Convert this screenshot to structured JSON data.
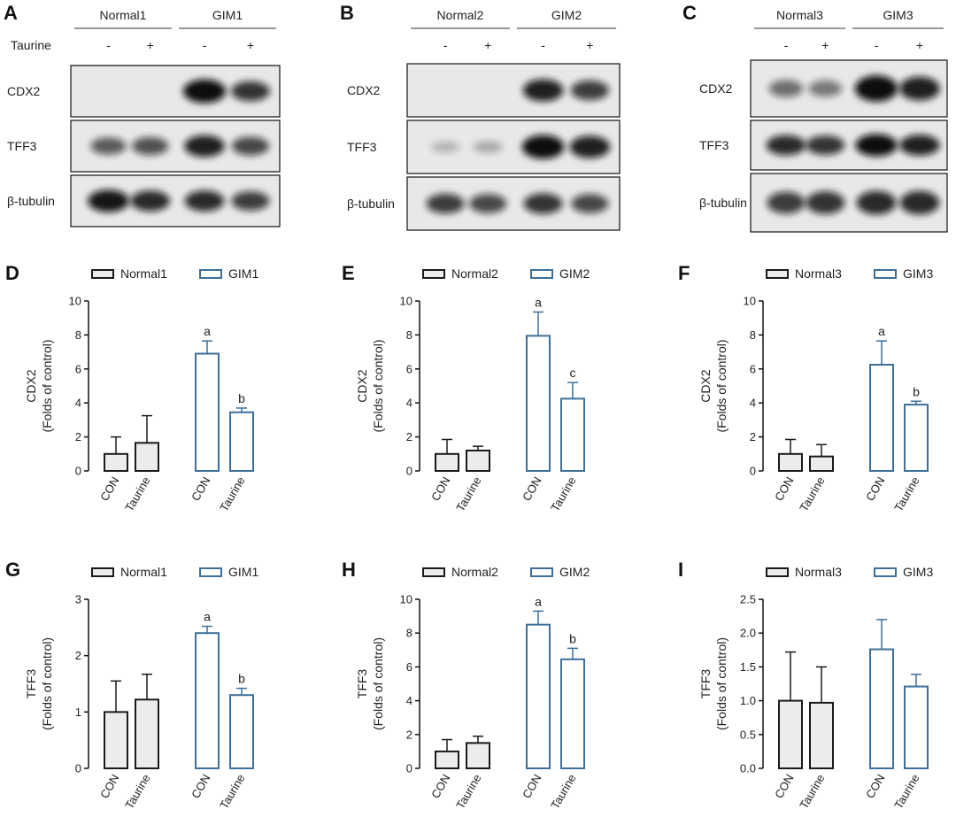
{
  "blots": [
    {
      "panel": "A",
      "groups": [
        "Normal1",
        "GIM1"
      ],
      "treatment_label": "Taurine",
      "signs": [
        "-",
        "+",
        "-",
        "+"
      ],
      "proteins": [
        "CDX2",
        "TFF3",
        "β-tubulin"
      ],
      "intensities": [
        [
          0,
          0,
          1.0,
          0.75
        ],
        [
          0.55,
          0.6,
          0.85,
          0.65
        ],
        [
          0.9,
          0.8,
          0.8,
          0.7
        ]
      ]
    },
    {
      "panel": "B",
      "groups": [
        "Normal2",
        "GIM2"
      ],
      "signs": [
        "-",
        "+",
        "-",
        "+"
      ],
      "proteins": [
        "CDX2",
        "TFF3",
        "β-tubulin"
      ],
      "intensities": [
        [
          0,
          0,
          0.85,
          0.7
        ],
        [
          0.1,
          0.15,
          0.95,
          0.85
        ],
        [
          0.7,
          0.65,
          0.75,
          0.65
        ]
      ]
    },
    {
      "panel": "C",
      "groups": [
        "Normal3",
        "GIM3"
      ],
      "signs": [
        "-",
        "+",
        "-",
        "+"
      ],
      "proteins": [
        "CDX2",
        "TFF3",
        "β-tubulin"
      ],
      "intensities": [
        [
          0.45,
          0.4,
          1.0,
          0.85
        ],
        [
          0.8,
          0.75,
          0.95,
          0.85
        ],
        [
          0.7,
          0.75,
          0.8,
          0.8
        ]
      ]
    }
  ],
  "chart_data": [
    {
      "panel": "D",
      "type": "bar",
      "legend": [
        "Normal1",
        "GIM1"
      ],
      "ylabel": [
        "CDX2",
        "(Folds of control)"
      ],
      "ylim": [
        0,
        10
      ],
      "yticks": [
        "0",
        "2",
        "4",
        "6",
        "8",
        "10"
      ],
      "categories": [
        "CON",
        "Taurine",
        "CON",
        "Taurine"
      ],
      "values": [
        1.0,
        1.65,
        6.9,
        3.45
      ],
      "errors": [
        1.0,
        1.6,
        0.75,
        0.25
      ],
      "annotations": [
        "",
        "",
        "a",
        "b"
      ]
    },
    {
      "panel": "E",
      "type": "bar",
      "legend": [
        "Normal2",
        "GIM2"
      ],
      "ylabel": [
        "CDX2",
        "(Folds of control)"
      ],
      "ylim": [
        0,
        10
      ],
      "yticks": [
        "0",
        "2",
        "4",
        "6",
        "8",
        "10"
      ],
      "categories": [
        "CON",
        "Taurine",
        "CON",
        "Taurine"
      ],
      "values": [
        1.0,
        1.2,
        7.95,
        4.25
      ],
      "errors": [
        0.85,
        0.25,
        1.4,
        0.95
      ],
      "annotations": [
        "",
        "",
        "a",
        "c"
      ]
    },
    {
      "panel": "F",
      "type": "bar",
      "legend": [
        "Normal3",
        "GIM3"
      ],
      "ylabel": [
        "CDX2",
        "(Folds of control)"
      ],
      "ylim": [
        0,
        10
      ],
      "yticks": [
        "0",
        "2",
        "4",
        "6",
        "8",
        "10"
      ],
      "categories": [
        "CON",
        "Taurine",
        "CON",
        "Taurine"
      ],
      "values": [
        1.0,
        0.85,
        6.25,
        3.9
      ],
      "errors": [
        0.85,
        0.7,
        1.4,
        0.2
      ],
      "annotations": [
        "",
        "",
        "a",
        "b"
      ]
    },
    {
      "panel": "G",
      "type": "bar",
      "legend": [
        "Normal1",
        "GIM1"
      ],
      "ylabel": [
        "TFF3",
        "(Folds of control)"
      ],
      "ylim": [
        0,
        3
      ],
      "yticks": [
        "0",
        "1",
        "2",
        "3"
      ],
      "categories": [
        "CON",
        "Taurine",
        "CON",
        "Taurine"
      ],
      "values": [
        1.0,
        1.22,
        2.4,
        1.3
      ],
      "errors": [
        0.55,
        0.45,
        0.12,
        0.12
      ],
      "annotations": [
        "",
        "",
        "a",
        "b"
      ]
    },
    {
      "panel": "H",
      "type": "bar",
      "legend": [
        "Normal2",
        "GIM2"
      ],
      "ylabel": [
        "TFF3",
        "(Folds of control)"
      ],
      "ylim": [
        0,
        10
      ],
      "yticks": [
        "0",
        "2",
        "4",
        "6",
        "8",
        "10"
      ],
      "categories": [
        "CON",
        "Taurine",
        "CON",
        "Taurine"
      ],
      "values": [
        1.0,
        1.5,
        8.5,
        6.45
      ],
      "errors": [
        0.7,
        0.4,
        0.8,
        0.65
      ],
      "annotations": [
        "",
        "",
        "a",
        "b"
      ]
    },
    {
      "panel": "I",
      "type": "bar",
      "legend": [
        "Normal3",
        "GIM3"
      ],
      "ylabel": [
        "TFF3",
        "(Folds of control)"
      ],
      "ylim": [
        0,
        2.5
      ],
      "yticks": [
        "0.0",
        "0.5",
        "1.0",
        "1.5",
        "2.0",
        "2.5"
      ],
      "categories": [
        "CON",
        "Taurine",
        "CON",
        "Taurine"
      ],
      "values": [
        1.0,
        0.97,
        1.76,
        1.21
      ],
      "errors": [
        0.72,
        0.53,
        0.44,
        0.18
      ],
      "annotations": [
        "",
        "",
        "",
        ""
      ]
    }
  ],
  "colors": {
    "normal_fill": "#ececec",
    "normal_stroke": "#1a1a1a",
    "gim_fill": "#ffffff",
    "gim_stroke": "#3d6f99",
    "band": "#111111",
    "blot_bg": "#e8e8e8"
  }
}
